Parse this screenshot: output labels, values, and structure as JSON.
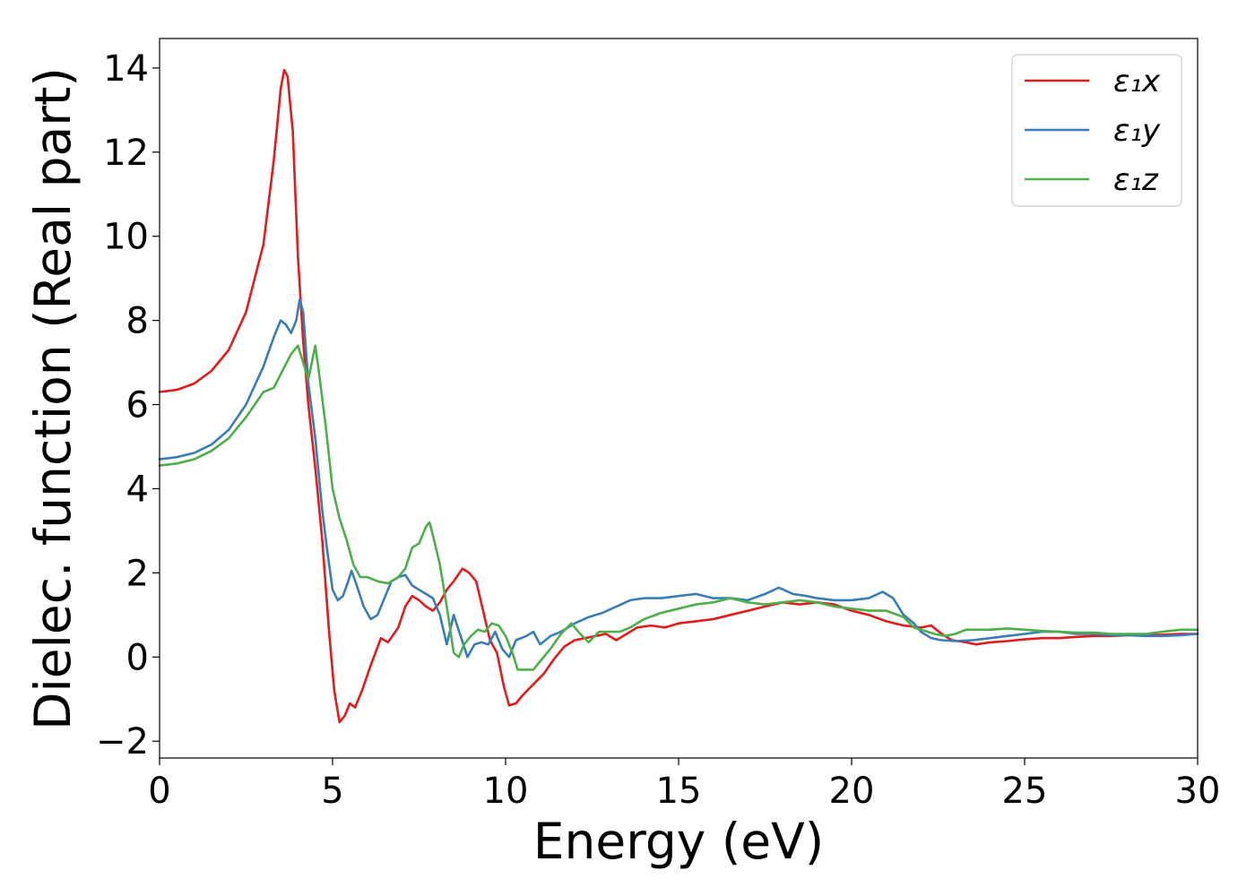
{
  "chart_data": {
    "type": "line",
    "xlabel": "Energy (eV)",
    "ylabel": "Dielec. function (Real part)",
    "xlim": [
      0,
      30
    ],
    "ylim": [
      -2.4,
      14.7
    ],
    "xticks": [
      0,
      5,
      10,
      15,
      20,
      25,
      30
    ],
    "xtick_labels": [
      "0",
      "5",
      "10",
      "15",
      "20",
      "25",
      "30"
    ],
    "yticks": [
      -2,
      0,
      2,
      4,
      6,
      8,
      10,
      12,
      14
    ],
    "ytick_labels": [
      "−2",
      "0",
      "2",
      "4",
      "6",
      "8",
      "10",
      "12",
      "14"
    ],
    "grid": false,
    "legend_position": "top-right",
    "series": [
      {
        "name": "ε₁x",
        "color": "#e41a1c",
        "points": [
          [
            0,
            6.3
          ],
          [
            0.5,
            6.35
          ],
          [
            1.0,
            6.5
          ],
          [
            1.5,
            6.8
          ],
          [
            2.0,
            7.3
          ],
          [
            2.5,
            8.2
          ],
          [
            3.0,
            9.8
          ],
          [
            3.3,
            11.8
          ],
          [
            3.5,
            13.5
          ],
          [
            3.6,
            13.95
          ],
          [
            3.7,
            13.8
          ],
          [
            3.85,
            12.5
          ],
          [
            4.0,
            9.5
          ],
          [
            4.15,
            7.5
          ],
          [
            4.3,
            6.0
          ],
          [
            4.5,
            4.5
          ],
          [
            4.7,
            2.8
          ],
          [
            4.9,
            0.6
          ],
          [
            5.05,
            -0.8
          ],
          [
            5.2,
            -1.55
          ],
          [
            5.35,
            -1.4
          ],
          [
            5.5,
            -1.1
          ],
          [
            5.65,
            -1.2
          ],
          [
            5.85,
            -0.8
          ],
          [
            6.1,
            -0.2
          ],
          [
            6.4,
            0.45
          ],
          [
            6.6,
            0.35
          ],
          [
            6.9,
            0.7
          ],
          [
            7.1,
            1.2
          ],
          [
            7.3,
            1.45
          ],
          [
            7.5,
            1.35
          ],
          [
            7.7,
            1.2
          ],
          [
            7.9,
            1.1
          ],
          [
            8.1,
            1.3
          ],
          [
            8.3,
            1.6
          ],
          [
            8.5,
            1.8
          ],
          [
            8.75,
            2.1
          ],
          [
            8.95,
            2.0
          ],
          [
            9.15,
            1.8
          ],
          [
            9.35,
            1.1
          ],
          [
            9.55,
            0.4
          ],
          [
            9.75,
            0.1
          ],
          [
            9.95,
            -0.7
          ],
          [
            10.1,
            -1.15
          ],
          [
            10.3,
            -1.1
          ],
          [
            10.5,
            -0.9
          ],
          [
            10.8,
            -0.65
          ],
          [
            11.1,
            -0.4
          ],
          [
            11.4,
            -0.05
          ],
          [
            11.7,
            0.25
          ],
          [
            12.0,
            0.4
          ],
          [
            12.3,
            0.45
          ],
          [
            12.6,
            0.5
          ],
          [
            12.9,
            0.55
          ],
          [
            13.2,
            0.4
          ],
          [
            13.5,
            0.55
          ],
          [
            13.8,
            0.7
          ],
          [
            14.2,
            0.75
          ],
          [
            14.6,
            0.7
          ],
          [
            15.0,
            0.8
          ],
          [
            15.5,
            0.85
          ],
          [
            16.0,
            0.9
          ],
          [
            16.5,
            1.0
          ],
          [
            17.0,
            1.1
          ],
          [
            17.5,
            1.2
          ],
          [
            18.0,
            1.3
          ],
          [
            18.5,
            1.25
          ],
          [
            19.0,
            1.3
          ],
          [
            19.5,
            1.25
          ],
          [
            20.0,
            1.1
          ],
          [
            20.5,
            1.0
          ],
          [
            21.0,
            0.85
          ],
          [
            21.5,
            0.75
          ],
          [
            22.0,
            0.7
          ],
          [
            22.3,
            0.75
          ],
          [
            22.6,
            0.55
          ],
          [
            22.9,
            0.4
          ],
          [
            23.3,
            0.35
          ],
          [
            23.6,
            0.3
          ],
          [
            24.0,
            0.35
          ],
          [
            24.5,
            0.38
          ],
          [
            25.0,
            0.42
          ],
          [
            25.5,
            0.45
          ],
          [
            26.0,
            0.45
          ],
          [
            26.5,
            0.48
          ],
          [
            27.0,
            0.5
          ],
          [
            27.5,
            0.5
          ],
          [
            28.0,
            0.52
          ],
          [
            28.5,
            0.52
          ],
          [
            29.0,
            0.53
          ],
          [
            29.5,
            0.55
          ],
          [
            30.0,
            0.55
          ]
        ]
      },
      {
        "name": "ε₁y",
        "color": "#377eb8",
        "points": [
          [
            0,
            4.7
          ],
          [
            0.5,
            4.75
          ],
          [
            1.0,
            4.85
          ],
          [
            1.5,
            5.05
          ],
          [
            2.0,
            5.4
          ],
          [
            2.5,
            6.0
          ],
          [
            3.0,
            6.9
          ],
          [
            3.3,
            7.6
          ],
          [
            3.5,
            8.0
          ],
          [
            3.65,
            7.9
          ],
          [
            3.8,
            7.7
          ],
          [
            3.95,
            8.0
          ],
          [
            4.05,
            8.5
          ],
          [
            4.15,
            8.2
          ],
          [
            4.3,
            6.5
          ],
          [
            4.5,
            5.2
          ],
          [
            4.7,
            3.5
          ],
          [
            4.85,
            2.5
          ],
          [
            5.0,
            1.6
          ],
          [
            5.15,
            1.35
          ],
          [
            5.3,
            1.45
          ],
          [
            5.45,
            1.8
          ],
          [
            5.55,
            2.05
          ],
          [
            5.7,
            1.7
          ],
          [
            5.9,
            1.2
          ],
          [
            6.1,
            0.9
          ],
          [
            6.3,
            1.0
          ],
          [
            6.5,
            1.4
          ],
          [
            6.7,
            1.8
          ],
          [
            6.9,
            1.9
          ],
          [
            7.1,
            1.95
          ],
          [
            7.3,
            1.7
          ],
          [
            7.5,
            1.6
          ],
          [
            7.7,
            1.5
          ],
          [
            7.9,
            1.4
          ],
          [
            8.1,
            1.0
          ],
          [
            8.3,
            0.3
          ],
          [
            8.5,
            1.0
          ],
          [
            8.7,
            0.5
          ],
          [
            8.9,
            0.0
          ],
          [
            9.1,
            0.3
          ],
          [
            9.3,
            0.35
          ],
          [
            9.5,
            0.3
          ],
          [
            9.7,
            0.6
          ],
          [
            9.9,
            0.2
          ],
          [
            10.1,
            0.0
          ],
          [
            10.3,
            0.4
          ],
          [
            10.6,
            0.5
          ],
          [
            10.8,
            0.6
          ],
          [
            11.0,
            0.3
          ],
          [
            11.3,
            0.5
          ],
          [
            11.6,
            0.6
          ],
          [
            12.0,
            0.8
          ],
          [
            12.4,
            0.95
          ],
          [
            12.8,
            1.05
          ],
          [
            13.2,
            1.2
          ],
          [
            13.6,
            1.35
          ],
          [
            14.0,
            1.4
          ],
          [
            14.5,
            1.4
          ],
          [
            15.0,
            1.45
          ],
          [
            15.5,
            1.5
          ],
          [
            16.0,
            1.4
          ],
          [
            16.5,
            1.4
          ],
          [
            17.0,
            1.35
          ],
          [
            17.5,
            1.5
          ],
          [
            17.9,
            1.65
          ],
          [
            18.3,
            1.5
          ],
          [
            18.7,
            1.45
          ],
          [
            19.0,
            1.4
          ],
          [
            19.5,
            1.35
          ],
          [
            20.0,
            1.35
          ],
          [
            20.5,
            1.4
          ],
          [
            20.9,
            1.55
          ],
          [
            21.2,
            1.4
          ],
          [
            21.5,
            1.0
          ],
          [
            21.8,
            0.8
          ],
          [
            22.0,
            0.6
          ],
          [
            22.3,
            0.45
          ],
          [
            22.6,
            0.4
          ],
          [
            23.0,
            0.38
          ],
          [
            23.5,
            0.4
          ],
          [
            24.0,
            0.45
          ],
          [
            24.5,
            0.5
          ],
          [
            25.0,
            0.55
          ],
          [
            25.5,
            0.6
          ],
          [
            26.0,
            0.6
          ],
          [
            26.5,
            0.55
          ],
          [
            27.0,
            0.55
          ],
          [
            27.5,
            0.52
          ],
          [
            28.0,
            0.52
          ],
          [
            28.5,
            0.5
          ],
          [
            29.0,
            0.5
          ],
          [
            29.5,
            0.52
          ],
          [
            30.0,
            0.55
          ]
        ]
      },
      {
        "name": "ε₁z",
        "color": "#4daf4a",
        "points": [
          [
            0,
            4.55
          ],
          [
            0.5,
            4.6
          ],
          [
            1.0,
            4.7
          ],
          [
            1.5,
            4.9
          ],
          [
            2.0,
            5.2
          ],
          [
            2.5,
            5.7
          ],
          [
            3.0,
            6.3
          ],
          [
            3.3,
            6.4
          ],
          [
            3.55,
            6.8
          ],
          [
            3.8,
            7.2
          ],
          [
            4.0,
            7.4
          ],
          [
            4.15,
            7.0
          ],
          [
            4.3,
            6.6
          ],
          [
            4.4,
            7.0
          ],
          [
            4.5,
            7.4
          ],
          [
            4.6,
            6.8
          ],
          [
            4.8,
            5.5
          ],
          [
            5.0,
            4.0
          ],
          [
            5.2,
            3.3
          ],
          [
            5.4,
            2.8
          ],
          [
            5.6,
            2.2
          ],
          [
            5.8,
            1.9
          ],
          [
            6.0,
            1.9
          ],
          [
            6.3,
            1.8
          ],
          [
            6.6,
            1.75
          ],
          [
            6.9,
            1.9
          ],
          [
            7.1,
            2.1
          ],
          [
            7.3,
            2.6
          ],
          [
            7.5,
            2.7
          ],
          [
            7.7,
            3.1
          ],
          [
            7.8,
            3.2
          ],
          [
            7.9,
            2.9
          ],
          [
            8.1,
            2.2
          ],
          [
            8.3,
            1.2
          ],
          [
            8.5,
            0.1
          ],
          [
            8.65,
            0.0
          ],
          [
            8.8,
            0.3
          ],
          [
            9.0,
            0.5
          ],
          [
            9.2,
            0.65
          ],
          [
            9.4,
            0.6
          ],
          [
            9.6,
            0.8
          ],
          [
            9.8,
            0.75
          ],
          [
            10.0,
            0.5
          ],
          [
            10.2,
            0.1
          ],
          [
            10.35,
            -0.3
          ],
          [
            10.6,
            -0.3
          ],
          [
            10.8,
            -0.3
          ],
          [
            11.0,
            -0.1
          ],
          [
            11.3,
            0.2
          ],
          [
            11.6,
            0.55
          ],
          [
            11.9,
            0.8
          ],
          [
            12.1,
            0.6
          ],
          [
            12.4,
            0.35
          ],
          [
            12.7,
            0.6
          ],
          [
            13.0,
            0.6
          ],
          [
            13.3,
            0.6
          ],
          [
            13.6,
            0.7
          ],
          [
            14.0,
            0.9
          ],
          [
            14.5,
            1.05
          ],
          [
            15.0,
            1.15
          ],
          [
            15.5,
            1.25
          ],
          [
            16.0,
            1.3
          ],
          [
            16.5,
            1.4
          ],
          [
            17.0,
            1.3
          ],
          [
            17.5,
            1.25
          ],
          [
            18.0,
            1.3
          ],
          [
            18.5,
            1.35
          ],
          [
            19.0,
            1.3
          ],
          [
            19.5,
            1.2
          ],
          [
            20.0,
            1.15
          ],
          [
            20.5,
            1.1
          ],
          [
            21.0,
            1.1
          ],
          [
            21.5,
            0.95
          ],
          [
            21.8,
            0.7
          ],
          [
            22.0,
            0.65
          ],
          [
            22.4,
            0.55
          ],
          [
            22.7,
            0.5
          ],
          [
            23.0,
            0.55
          ],
          [
            23.3,
            0.65
          ],
          [
            24.0,
            0.65
          ],
          [
            24.5,
            0.68
          ],
          [
            25.0,
            0.65
          ],
          [
            25.5,
            0.62
          ],
          [
            26.0,
            0.6
          ],
          [
            26.5,
            0.58
          ],
          [
            27.0,
            0.58
          ],
          [
            27.5,
            0.55
          ],
          [
            28.0,
            0.55
          ],
          [
            28.5,
            0.55
          ],
          [
            29.0,
            0.6
          ],
          [
            29.5,
            0.65
          ],
          [
            30.0,
            0.65
          ]
        ]
      }
    ]
  }
}
